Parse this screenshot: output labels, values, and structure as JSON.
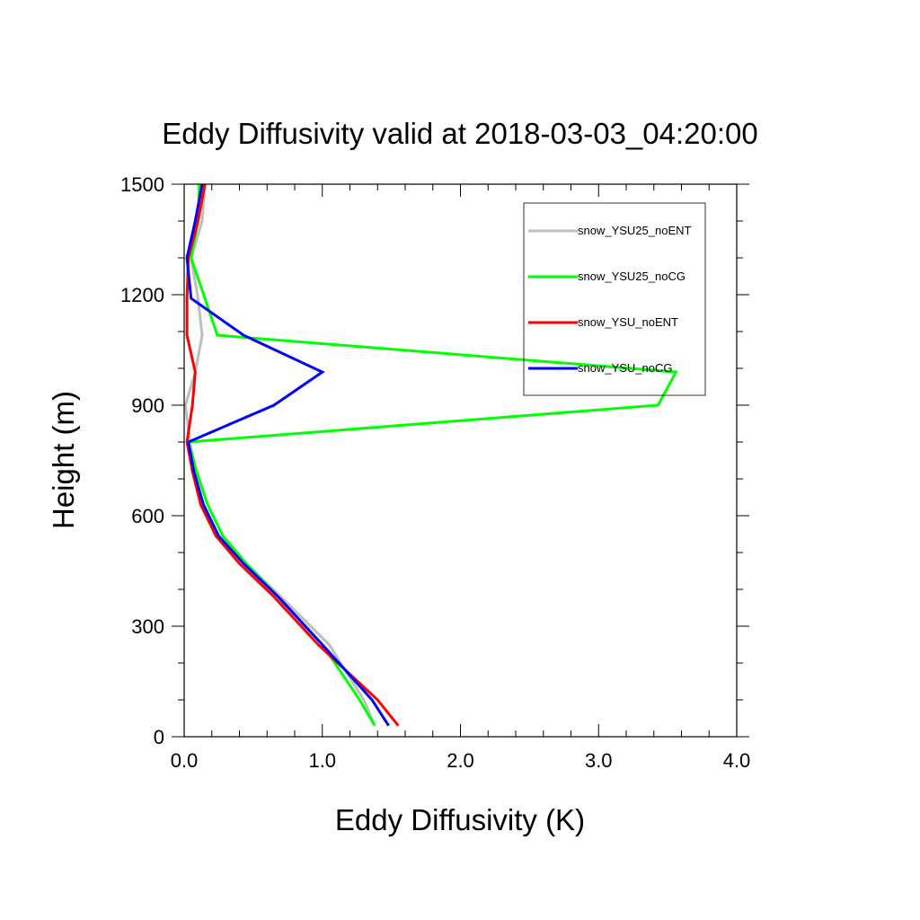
{
  "chart_data": {
    "type": "line",
    "title": "Eddy Diffusivity valid at 2018-03-03_04:20:00",
    "xlabel": "Eddy Diffusivity (K)",
    "ylabel": "Height (m)",
    "xlim": [
      0,
      4
    ],
    "ylim": [
      0,
      1500
    ],
    "xticks": [
      0,
      1,
      2,
      3,
      4
    ],
    "xtick_labels": [
      "0.0",
      "1.0",
      "2.0",
      "3.0",
      "4.0"
    ],
    "yticks": [
      0,
      300,
      600,
      900,
      1200,
      1500
    ],
    "ytick_labels": [
      "0",
      "300",
      "600",
      "900",
      "1200",
      "1500"
    ],
    "legend_position": "top-right",
    "grid": false,
    "series": [
      {
        "name": "snow_YSU25_noENT",
        "color": "#bebebe",
        "points": [
          [
            1.38,
            30
          ],
          [
            1.3,
            100
          ],
          [
            1.05,
            250
          ],
          [
            0.7,
            380
          ],
          [
            0.45,
            470
          ],
          [
            0.28,
            545
          ],
          [
            0.17,
            630
          ],
          [
            0.09,
            720
          ],
          [
            0.04,
            800
          ],
          [
            0.01,
            900
          ],
          [
            0.08,
            990
          ],
          [
            0.13,
            1090
          ],
          [
            0.1,
            1190
          ],
          [
            0.05,
            1300
          ],
          [
            0.13,
            1400
          ],
          [
            0.15,
            1500
          ]
        ]
      },
      {
        "name": "snow_YSU25_noCG",
        "color": "#00ff00",
        "points": [
          [
            1.38,
            30
          ],
          [
            1.27,
            100
          ],
          [
            1.0,
            250
          ],
          [
            0.68,
            380
          ],
          [
            0.45,
            470
          ],
          [
            0.28,
            545
          ],
          [
            0.17,
            630
          ],
          [
            0.09,
            720
          ],
          [
            0.03,
            800
          ],
          [
            3.43,
            900
          ],
          [
            3.56,
            990
          ],
          [
            0.24,
            1090
          ],
          [
            0.15,
            1190
          ],
          [
            0.05,
            1300
          ],
          [
            0.1,
            1400
          ],
          [
            0.11,
            1500
          ]
        ]
      },
      {
        "name": "snow_YSU_noENT",
        "color": "#ff0000",
        "points": [
          [
            1.55,
            30
          ],
          [
            1.4,
            100
          ],
          [
            0.97,
            250
          ],
          [
            0.65,
            380
          ],
          [
            0.4,
            470
          ],
          [
            0.23,
            545
          ],
          [
            0.12,
            630
          ],
          [
            0.06,
            720
          ],
          [
            0.02,
            800
          ],
          [
            0.06,
            900
          ],
          [
            0.08,
            990
          ],
          [
            0.02,
            1090
          ],
          [
            0.02,
            1190
          ],
          [
            0.03,
            1300
          ],
          [
            0.1,
            1400
          ],
          [
            0.15,
            1500
          ]
        ]
      },
      {
        "name": "snow_YSU_noCG",
        "color": "#0000ff",
        "points": [
          [
            1.48,
            30
          ],
          [
            1.36,
            100
          ],
          [
            1.0,
            250
          ],
          [
            0.68,
            380
          ],
          [
            0.43,
            470
          ],
          [
            0.25,
            545
          ],
          [
            0.14,
            630
          ],
          [
            0.07,
            720
          ],
          [
            0.03,
            800
          ],
          [
            0.65,
            900
          ],
          [
            1.0,
            990
          ],
          [
            0.43,
            1090
          ],
          [
            0.05,
            1190
          ],
          [
            0.02,
            1300
          ],
          [
            0.08,
            1400
          ],
          [
            0.13,
            1500
          ]
        ]
      }
    ]
  }
}
